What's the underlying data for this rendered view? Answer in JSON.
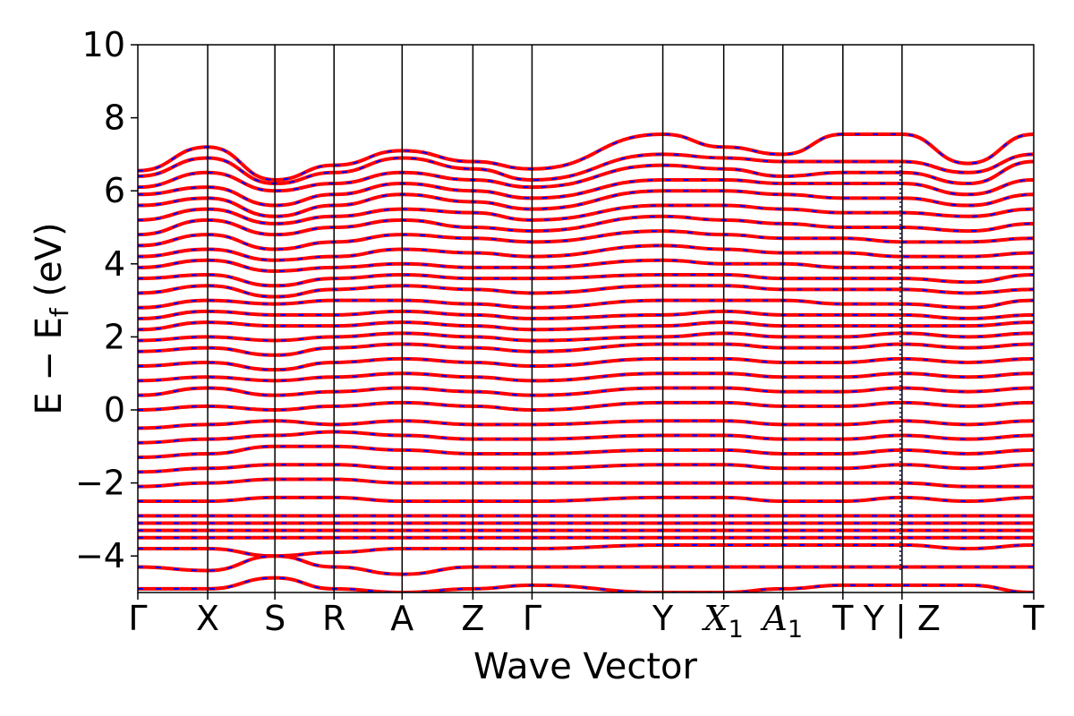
{
  "chart_data": {
    "type": "line",
    "title": "",
    "xlabel": "Wave Vector",
    "ylabel_parts": {
      "main": "E − E",
      "sub": "f",
      "unit": " (eV)"
    },
    "ylim": [
      -5,
      10
    ],
    "y_ticks": [
      -4,
      -2,
      0,
      2,
      4,
      6,
      8,
      10
    ],
    "y_tick_labels": [
      "−4",
      "−2",
      "0",
      "2",
      "4",
      "6",
      "8",
      "10"
    ],
    "grid": false,
    "legend": "none",
    "colors": {
      "band_main": "#ff0000",
      "band_overlay": "#0000ff",
      "kpath_line": "#000000",
      "break_line": "#333366"
    },
    "kpath": [
      {
        "label": "Γ",
        "italic": false,
        "sub": ""
      },
      {
        "label": "X",
        "italic": false,
        "sub": ""
      },
      {
        "label": "S",
        "italic": false,
        "sub": ""
      },
      {
        "label": "R",
        "italic": false,
        "sub": ""
      },
      {
        "label": "A",
        "italic": false,
        "sub": ""
      },
      {
        "label": "Z",
        "italic": false,
        "sub": ""
      },
      {
        "label": "Γ",
        "italic": false,
        "sub": ""
      },
      {
        "label": "Y",
        "italic": false,
        "sub": ""
      },
      {
        "label": "X",
        "italic": true,
        "sub": "1"
      },
      {
        "label": "A",
        "italic": true,
        "sub": "1"
      },
      {
        "label": "T",
        "italic": false,
        "sub": ""
      },
      {
        "label": "Y | Z",
        "italic": false,
        "sub": ""
      },
      {
        "label": "T",
        "italic": false,
        "sub": ""
      }
    ],
    "kpath_positions": [
      0,
      0.078,
      0.153,
      0.219,
      0.295,
      0.374,
      0.44,
      0.586,
      0.654,
      0.72,
      0.787,
      0.853,
      1.0
    ],
    "break_at": 0.853,
    "series": [
      {
        "values": [
          6.55,
          7.2,
          6.3,
          6.7,
          7.1,
          6.8,
          6.6,
          7.55,
          7.2,
          7.0,
          7.55,
          7.55,
          6.75,
          7.55
        ]
      },
      {
        "values": [
          6.4,
          6.9,
          6.2,
          6.5,
          6.9,
          6.6,
          6.3,
          7.0,
          6.9,
          6.8,
          6.8,
          6.8,
          6.5,
          7.0
        ]
      },
      {
        "values": [
          6.1,
          6.5,
          6.0,
          6.2,
          6.5,
          6.3,
          6.1,
          6.7,
          6.6,
          6.4,
          6.5,
          6.5,
          6.2,
          6.8
        ]
      },
      {
        "values": [
          5.9,
          6.1,
          5.6,
          5.9,
          6.2,
          6.0,
          5.8,
          6.3,
          6.3,
          6.2,
          6.2,
          6.2,
          5.9,
          6.3
        ]
      },
      {
        "values": [
          5.6,
          5.8,
          5.3,
          5.6,
          5.9,
          5.7,
          5.5,
          6.0,
          6.0,
          5.9,
          5.8,
          5.8,
          5.6,
          5.9
        ]
      },
      {
        "values": [
          5.2,
          5.5,
          5.1,
          5.3,
          5.5,
          5.4,
          5.2,
          5.6,
          5.6,
          5.5,
          5.4,
          5.4,
          5.3,
          5.5
        ]
      },
      {
        "values": [
          4.8,
          5.2,
          4.8,
          5.0,
          5.2,
          5.0,
          4.9,
          5.3,
          5.2,
          5.1,
          5.0,
          5.0,
          4.9,
          5.1
        ]
      },
      {
        "values": [
          4.5,
          4.8,
          4.4,
          4.6,
          4.8,
          4.7,
          4.6,
          4.9,
          4.8,
          4.7,
          4.7,
          4.6,
          4.6,
          4.7
        ]
      },
      {
        "values": [
          4.2,
          4.4,
          4.1,
          4.2,
          4.4,
          4.3,
          4.2,
          4.5,
          4.4,
          4.3,
          4.3,
          4.2,
          4.2,
          4.3
        ]
      },
      {
        "values": [
          3.9,
          4.1,
          3.8,
          3.9,
          4.0,
          3.9,
          3.9,
          4.1,
          4.0,
          4.0,
          3.9,
          3.9,
          3.9,
          3.9
        ]
      },
      {
        "values": [
          3.6,
          3.7,
          3.4,
          3.6,
          3.7,
          3.6,
          3.6,
          3.7,
          3.7,
          3.6,
          3.6,
          3.6,
          3.5,
          3.7
        ]
      },
      {
        "values": [
          3.2,
          3.4,
          3.1,
          3.3,
          3.4,
          3.3,
          3.2,
          3.4,
          3.4,
          3.3,
          3.3,
          3.3,
          3.2,
          3.3
        ]
      },
      {
        "values": [
          2.8,
          3.0,
          2.9,
          3.0,
          3.0,
          2.9,
          2.8,
          3.0,
          3.0,
          3.0,
          2.9,
          2.9,
          2.8,
          3.0
        ]
      },
      {
        "values": [
          2.5,
          2.7,
          2.6,
          2.6,
          2.7,
          2.6,
          2.5,
          2.6,
          2.7,
          2.6,
          2.6,
          2.6,
          2.5,
          2.6
        ]
      },
      {
        "values": [
          2.2,
          2.4,
          2.3,
          2.3,
          2.4,
          2.3,
          2.2,
          2.3,
          2.4,
          2.3,
          2.3,
          2.3,
          2.3,
          2.4
        ]
      },
      {
        "values": [
          1.9,
          2.0,
          1.9,
          2.0,
          2.1,
          2.0,
          1.9,
          2.0,
          2.1,
          2.0,
          2.0,
          2.1,
          2.0,
          2.1
        ]
      },
      {
        "values": [
          1.6,
          1.7,
          1.5,
          1.7,
          1.8,
          1.7,
          1.6,
          1.8,
          1.8,
          1.7,
          1.7,
          1.8,
          1.7,
          1.8
        ]
      },
      {
        "values": [
          1.2,
          1.3,
          1.1,
          1.3,
          1.4,
          1.3,
          1.2,
          1.4,
          1.4,
          1.3,
          1.3,
          1.4,
          1.3,
          1.4
        ]
      },
      {
        "values": [
          0.8,
          0.9,
          0.8,
          0.9,
          1.0,
          0.9,
          0.8,
          1.0,
          1.0,
          0.9,
          0.9,
          1.0,
          0.9,
          1.0
        ]
      },
      {
        "values": [
          0.4,
          0.6,
          0.4,
          0.5,
          0.6,
          0.5,
          0.4,
          0.6,
          0.6,
          0.5,
          0.5,
          0.6,
          0.5,
          0.6
        ]
      },
      {
        "values": [
          0.0,
          0.1,
          0.0,
          0.1,
          0.2,
          0.1,
          0.0,
          0.2,
          0.2,
          0.1,
          0.1,
          0.2,
          0.1,
          0.2
        ]
      },
      {
        "values": [
          -0.5,
          -0.4,
          -0.3,
          -0.4,
          -0.3,
          -0.4,
          -0.4,
          -0.3,
          -0.3,
          -0.4,
          -0.4,
          -0.3,
          -0.4,
          -0.3
        ]
      },
      {
        "values": [
          -0.9,
          -0.8,
          -0.7,
          -0.6,
          -0.7,
          -0.8,
          -0.8,
          -0.7,
          -0.7,
          -0.8,
          -0.8,
          -0.7,
          -0.8,
          -0.7
        ]
      },
      {
        "values": [
          -1.3,
          -1.2,
          -1.0,
          -1.0,
          -1.1,
          -1.2,
          -1.2,
          -1.1,
          -1.1,
          -1.2,
          -1.2,
          -1.1,
          -1.2,
          -1.1
        ]
      },
      {
        "values": [
          -1.7,
          -1.6,
          -1.5,
          -1.5,
          -1.6,
          -1.6,
          -1.6,
          -1.5,
          -1.5,
          -1.6,
          -1.6,
          -1.5,
          -1.6,
          -1.5
        ]
      },
      {
        "values": [
          -2.1,
          -2.0,
          -1.9,
          -1.9,
          -2.0,
          -2.0,
          -2.0,
          -2.0,
          -2.0,
          -2.0,
          -2.0,
          -2.0,
          -2.1,
          -2.1
        ]
      },
      {
        "values": [
          -2.5,
          -2.5,
          -2.4,
          -2.4,
          -2.5,
          -2.5,
          -2.5,
          -2.4,
          -2.4,
          -2.5,
          -2.5,
          -2.4,
          -2.5,
          -2.4
        ]
      },
      {
        "values": [
          -2.9,
          -2.9,
          -2.9,
          -2.9,
          -2.9,
          -2.9,
          -2.9,
          -2.9,
          -2.9,
          -2.9,
          -2.9,
          -2.9,
          -2.9,
          -2.9
        ]
      },
      {
        "values": [
          -3.1,
          -3.1,
          -3.1,
          -3.1,
          -3.1,
          -3.1,
          -3.1,
          -3.1,
          -3.1,
          -3.1,
          -3.1,
          -3.1,
          -3.1,
          -3.1
        ]
      },
      {
        "values": [
          -3.3,
          -3.3,
          -3.3,
          -3.3,
          -3.3,
          -3.3,
          -3.3,
          -3.3,
          -3.3,
          -3.3,
          -3.3,
          -3.3,
          -3.3,
          -3.3
        ]
      },
      {
        "values": [
          -3.5,
          -3.5,
          -3.5,
          -3.5,
          -3.5,
          -3.5,
          -3.5,
          -3.5,
          -3.5,
          -3.5,
          -3.5,
          -3.5,
          -3.5,
          -3.5
        ]
      },
      {
        "values": [
          -3.8,
          -3.8,
          -4.0,
          -3.9,
          -3.8,
          -3.8,
          -3.8,
          -3.7,
          -3.7,
          -3.7,
          -3.7,
          -3.7,
          -3.8,
          -3.7
        ]
      },
      {
        "values": [
          -4.3,
          -4.4,
          -4.0,
          -4.3,
          -4.5,
          -4.3,
          -4.3,
          -4.3,
          -4.3,
          -4.3,
          -4.3,
          -4.3,
          -4.3,
          -4.3
        ]
      },
      {
        "values": [
          -4.9,
          -4.9,
          -4.6,
          -4.9,
          -5.0,
          -4.9,
          -4.8,
          -5.0,
          -5.0,
          -4.9,
          -4.8,
          -4.8,
          -4.8,
          -5.0
        ]
      }
    ]
  }
}
